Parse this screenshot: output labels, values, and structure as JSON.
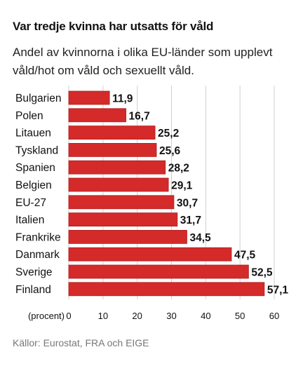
{
  "title": "Var tredje kvinna har utsatts för våld",
  "subtitle": "Andel av kvinnorna i olika EU-länder som upplevt våld/hot om våld och sexuellt våld.",
  "source": "Källor: Eurostat, FRA och EIGE",
  "colors": {
    "bar": "#d42a2a",
    "bar_stroke": "#b01e1e",
    "grid": "#cfcfcf"
  },
  "chart_data": {
    "type": "bar",
    "orientation": "horizontal",
    "categories": [
      "Bulgarien",
      "Polen",
      "Litauen",
      "Tyskland",
      "Spanien",
      "Belgien",
      "EU-27",
      "Italien",
      "Frankrike",
      "Danmark",
      "Sverige",
      "Finland"
    ],
    "values": [
      11.9,
      16.7,
      25.2,
      25.6,
      28.2,
      29.1,
      30.7,
      31.7,
      34.5,
      47.5,
      52.5,
      57.1
    ],
    "value_labels": [
      "11,9",
      "16,7",
      "25,2",
      "25,6",
      "28,2",
      "29,1",
      "30,7",
      "31,7",
      "34,5",
      "47,5",
      "52,5",
      "57,1"
    ],
    "xlabel": "(procent)",
    "xlim": [
      0,
      60
    ],
    "xticks": [
      0,
      10,
      20,
      30,
      40,
      50,
      60
    ],
    "grid": true
  }
}
